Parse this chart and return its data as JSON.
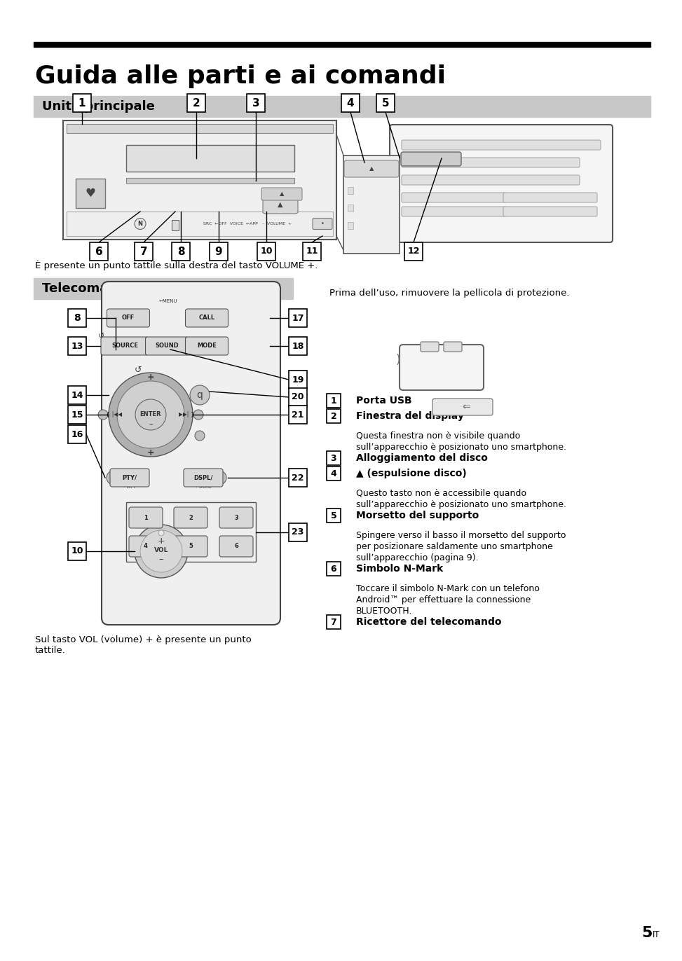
{
  "title": "Guida alle parti e ai comandi",
  "section1": "Unità principale",
  "section2": "Telecomando RM-X311",
  "note1": "È presente un punto tattile sulla destra del tasto VOLUME +.",
  "note2": "Prima dell’uso, rimuovere la pellicola di protezione.",
  "note3": "Sul tasto VOL (volume) + è presente un punto\ntattile.",
  "page_num": "5",
  "page_suffix": "IT",
  "items": [
    {
      "num": "1",
      "title": "Porta USB",
      "body": ""
    },
    {
      "num": "2",
      "title": "Finestra del display",
      "body": "Questa finestra non è visibile quando\nsull’apparecchio è posizionato uno smartphone."
    },
    {
      "num": "3",
      "title": "Alloggiamento del disco",
      "body": ""
    },
    {
      "num": "4",
      "title": "▲ (espulsione disco)",
      "body": "Questo tasto non è accessibile quando\nsull’apparecchio è posizionato uno smartphone."
    },
    {
      "num": "5",
      "title": "Morsetto del supporto",
      "body": "Spingere verso il basso il morsetto del supporto\nper posizionare saldamente uno smartphone\nsull’apparecchio (pagina 9)."
    },
    {
      "num": "6",
      "title": "Simbolo N-Mark",
      "body": "Toccare il simbolo N-Mark con un telefono\nAndroid™ per effettuare la connessione\nBLUETOOTH."
    },
    {
      "num": "7",
      "title": "Ricettore del telecomando",
      "body": ""
    }
  ],
  "bg_color": "#ffffff",
  "header_bar_color": "#000000",
  "section_bg_color": "#cccccc"
}
